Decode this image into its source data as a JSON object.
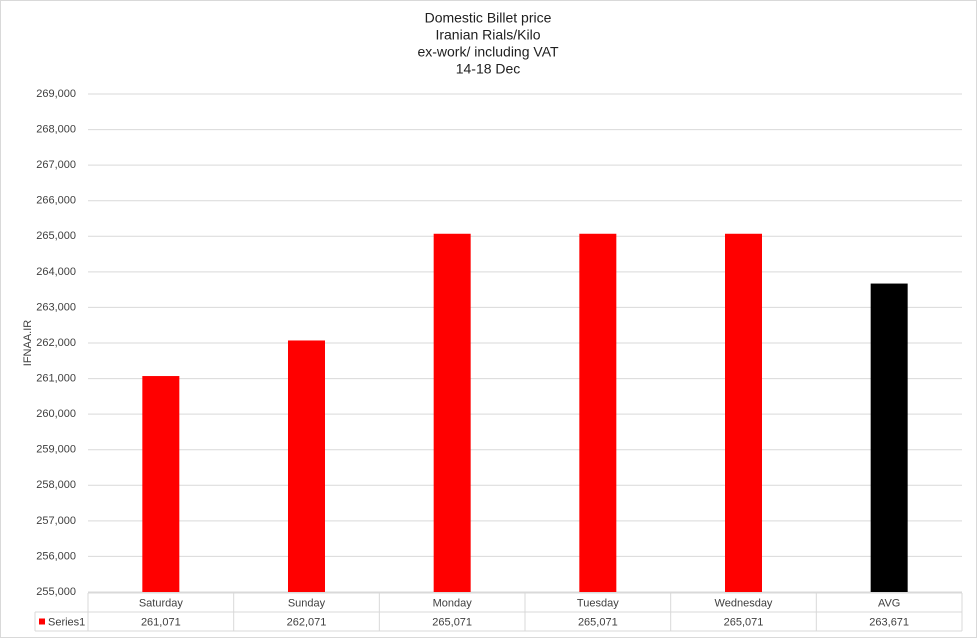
{
  "chart_data": {
    "type": "bar",
    "title": [
      "Domestic Billet price",
      "Iranian Rials/Kilo",
      "ex-work/ including VAT",
      "14-18 Dec"
    ],
    "y_label": "IFNAA.IR",
    "categories": [
      "Saturday",
      "Sunday",
      "Monday",
      "Tuesday",
      "Wednesday",
      "AVG"
    ],
    "series": [
      {
        "name": "Series1",
        "color": "#ff0000",
        "point_colors": [
          "#ff0000",
          "#ff0000",
          "#ff0000",
          "#ff0000",
          "#ff0000",
          "#000000"
        ],
        "values": [
          261071,
          262071,
          265071,
          265071,
          265071,
          263671
        ],
        "value_labels": [
          "261,071",
          "262,071",
          "265,071",
          "265,071",
          "265,071",
          "263,671"
        ]
      }
    ],
    "ylim": [
      255000,
      269000
    ],
    "yticks": [
      {
        "value": 255000,
        "label": "255,000"
      },
      {
        "value": 256000,
        "label": "256,000"
      },
      {
        "value": 257000,
        "label": "257,000"
      },
      {
        "value": 258000,
        "label": "258,000"
      },
      {
        "value": 259000,
        "label": "259,000"
      },
      {
        "value": 260000,
        "label": "260,000"
      },
      {
        "value": 261000,
        "label": "261,000"
      },
      {
        "value": 262000,
        "label": "262,000"
      },
      {
        "value": 263000,
        "label": "263,000"
      },
      {
        "value": 264000,
        "label": "264,000"
      },
      {
        "value": 265000,
        "label": "265,000"
      },
      {
        "value": 266000,
        "label": "266,000"
      },
      {
        "value": 267000,
        "label": "267,000"
      },
      {
        "value": 268000,
        "label": "268,000"
      },
      {
        "value": 269000,
        "label": "269,000"
      }
    ],
    "grid": true,
    "data_table": true
  }
}
